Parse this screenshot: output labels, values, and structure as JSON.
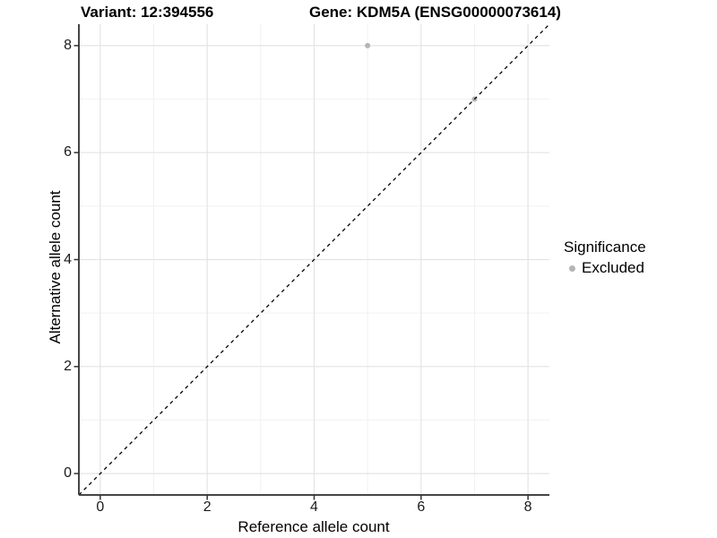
{
  "titles": {
    "variant": "Variant: 12:394556",
    "gene": "Gene: KDM5A (ENSG00000073614)"
  },
  "axes": {
    "x_label": "Reference allele count",
    "y_label": "Alternative allele count"
  },
  "legend": {
    "title": "Significance",
    "position": "right",
    "items": [
      {
        "label": "Excluded",
        "color": "#b4b4b4",
        "marker": "circle"
      }
    ]
  },
  "colors": {
    "background": "#ffffff",
    "grid_major": "#e4e4e4",
    "grid_minor": "#f2f2f2",
    "axis_line": "#454545",
    "tick_mark": "#333333",
    "tick_text": "#1a1a1a",
    "identity_line": "#000000",
    "excluded_point": "#b4b4b4"
  },
  "chart_data": {
    "type": "scatter",
    "title_left": "Variant: 12:394556",
    "title_right": "Gene: KDM5A (ENSG00000073614)",
    "xlabel": "Reference allele count",
    "ylabel": "Alternative allele count",
    "xlim": [
      -0.4,
      8.4
    ],
    "ylim": [
      -0.4,
      8.4
    ],
    "x_ticks": [
      0,
      2,
      4,
      6,
      8
    ],
    "x_tick_labels": [
      "0",
      "2",
      "4",
      "6",
      "8"
    ],
    "y_ticks": [
      0,
      2,
      4,
      6,
      8
    ],
    "y_tick_labels": [
      "0",
      "2",
      "4",
      "6",
      "8"
    ],
    "minor_ticks_x": [
      1,
      3,
      5,
      7
    ],
    "minor_ticks_y": [
      1,
      3,
      5,
      7
    ],
    "grid": true,
    "legend_position": "right",
    "series": [
      {
        "name": "Excluded",
        "color": "#b4b4b4",
        "points": [
          {
            "x": 5,
            "y": 8
          },
          {
            "x": 7,
            "y": 7
          }
        ]
      }
    ],
    "reference_line": {
      "type": "identity",
      "slope": 1,
      "intercept": 0,
      "style": "dashed",
      "color": "#000000"
    }
  }
}
